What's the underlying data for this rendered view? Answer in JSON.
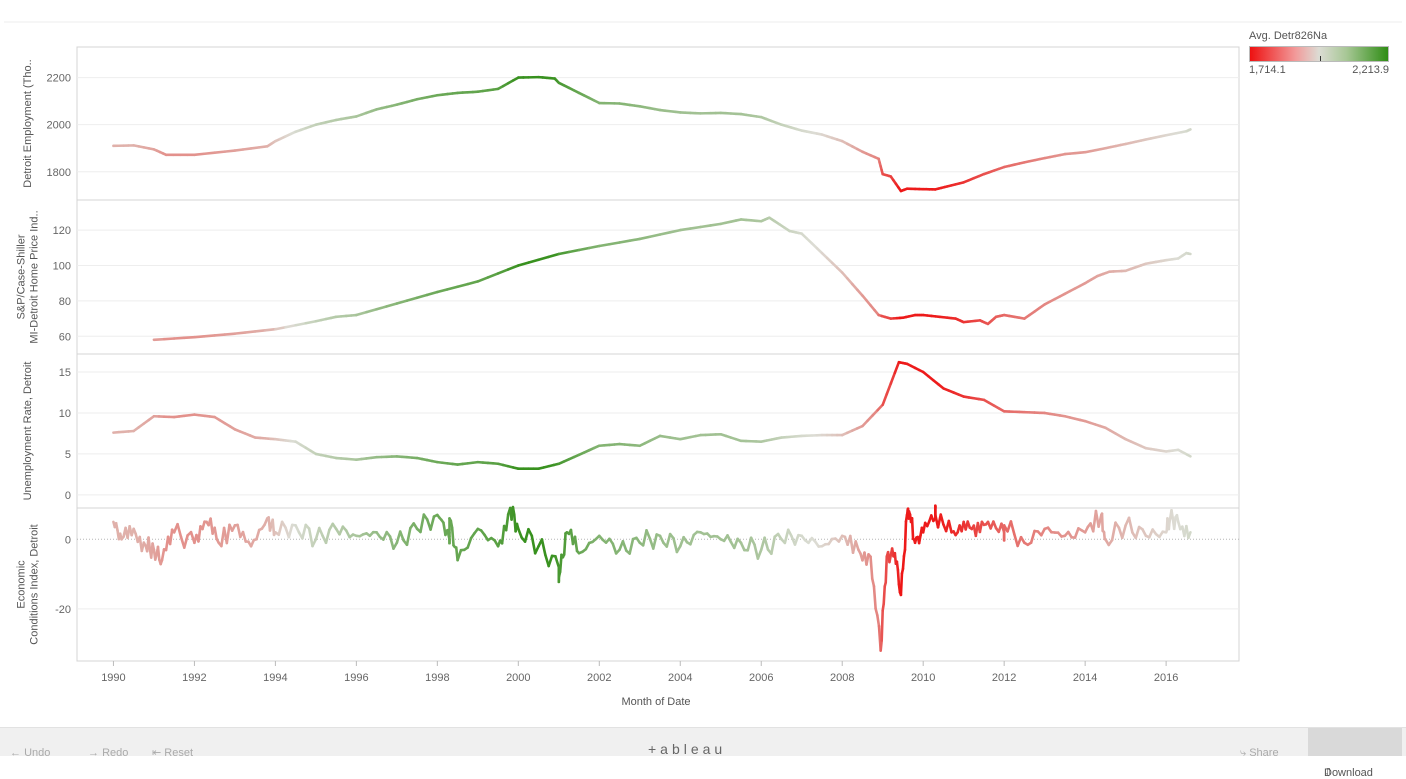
{
  "chart_data": {
    "type": "line",
    "xlabel": "Month of Date",
    "x_ticks": [
      "1990",
      "1992",
      "1994",
      "1996",
      "1998",
      "2000",
      "2002",
      "2004",
      "2006",
      "2008",
      "2010",
      "2012",
      "2014",
      "2016"
    ],
    "xlim": [
      1989.1,
      2017.8
    ],
    "color_legend": {
      "title": "Avg. Detr826Na",
      "min_label": "1,714.1",
      "max_label": "2,213.9",
      "min": 1714.1,
      "max": 2213.9,
      "low_color": "#ee1111",
      "mid_color": "#dcdcd4",
      "high_color": "#2f8d15"
    },
    "panels": [
      {
        "name": "employment",
        "ylabel": "Detroit Employment (Tho..",
        "ylim": [
          1680,
          2330
        ],
        "y_ticks": [
          1800,
          2000,
          2200
        ],
        "y_tick_labels": [
          "1800",
          "2000",
          "2200"
        ],
        "zero_line": false,
        "points": [
          [
            1990.0,
            1910
          ],
          [
            1990.5,
            1912
          ],
          [
            1991.0,
            1895
          ],
          [
            1991.3,
            1872
          ],
          [
            1992.0,
            1872
          ],
          [
            1993.0,
            1890
          ],
          [
            1993.8,
            1908
          ],
          [
            1994.0,
            1930
          ],
          [
            1994.5,
            1970
          ],
          [
            1995.0,
            2000
          ],
          [
            1995.5,
            2020
          ],
          [
            1996.0,
            2035
          ],
          [
            1996.5,
            2065
          ],
          [
            1997.0,
            2085
          ],
          [
            1997.5,
            2108
          ],
          [
            1998.0,
            2125
          ],
          [
            1998.5,
            2135
          ],
          [
            1999.0,
            2140
          ],
          [
            1999.5,
            2152
          ],
          [
            2000.0,
            2200
          ],
          [
            2000.5,
            2202
          ],
          [
            2000.9,
            2196
          ],
          [
            2001.0,
            2178
          ],
          [
            2001.5,
            2135
          ],
          [
            2002.0,
            2092
          ],
          [
            2002.5,
            2090
          ],
          [
            2003.0,
            2078
          ],
          [
            2003.5,
            2062
          ],
          [
            2004.0,
            2052
          ],
          [
            2004.5,
            2048
          ],
          [
            2005.0,
            2050
          ],
          [
            2005.5,
            2045
          ],
          [
            2006.0,
            2032
          ],
          [
            2006.5,
            2000
          ],
          [
            2007.0,
            1975
          ],
          [
            2007.5,
            1958
          ],
          [
            2008.0,
            1930
          ],
          [
            2008.5,
            1885
          ],
          [
            2008.9,
            1855
          ],
          [
            2009.0,
            1790
          ],
          [
            2009.2,
            1780
          ],
          [
            2009.45,
            1718
          ],
          [
            2009.6,
            1728
          ],
          [
            2010.0,
            1726
          ],
          [
            2010.3,
            1725
          ],
          [
            2010.6,
            1738
          ],
          [
            2011.0,
            1755
          ],
          [
            2011.5,
            1790
          ],
          [
            2012.0,
            1820
          ],
          [
            2012.5,
            1840
          ],
          [
            2013.0,
            1858
          ],
          [
            2013.5,
            1875
          ],
          [
            2014.0,
            1883
          ],
          [
            2014.5,
            1900
          ],
          [
            2015.0,
            1918
          ],
          [
            2015.5,
            1937
          ],
          [
            2016.0,
            1955
          ],
          [
            2016.5,
            1972
          ],
          [
            2016.6,
            1980
          ]
        ],
        "spikes": []
      },
      {
        "name": "home-price",
        "ylabel": "S&P/Case-Shiller MI-Detroit Home Price Ind..",
        "ylim": [
          50,
          137
        ],
        "y_ticks": [
          60,
          80,
          100,
          120
        ],
        "y_tick_labels": [
          "60",
          "80",
          "100",
          "120"
        ],
        "zero_line": false,
        "points": [
          [
            1991.0,
            58
          ],
          [
            1992.0,
            59.5
          ],
          [
            1993.0,
            61.5
          ],
          [
            1994.0,
            64
          ],
          [
            1995.0,
            68.5
          ],
          [
            1995.5,
            71
          ],
          [
            1996.0,
            72
          ],
          [
            1997.0,
            78.5
          ],
          [
            1998.0,
            85
          ],
          [
            1999.0,
            91
          ],
          [
            2000.0,
            100
          ],
          [
            2001.0,
            106.5
          ],
          [
            2002.0,
            111
          ],
          [
            2003.0,
            115
          ],
          [
            2004.0,
            120
          ],
          [
            2005.0,
            123.5
          ],
          [
            2005.5,
            126
          ],
          [
            2006.0,
            125
          ],
          [
            2006.2,
            127
          ],
          [
            2006.7,
            119.5
          ],
          [
            2007.0,
            118
          ],
          [
            2007.5,
            107
          ],
          [
            2008.0,
            96
          ],
          [
            2008.5,
            83
          ],
          [
            2008.9,
            72
          ],
          [
            2009.2,
            70
          ],
          [
            2009.5,
            70.5
          ],
          [
            2009.8,
            72
          ],
          [
            2010.0,
            72
          ],
          [
            2010.4,
            71
          ],
          [
            2010.8,
            70
          ],
          [
            2011.0,
            68
          ],
          [
            2011.4,
            69
          ],
          [
            2011.6,
            67
          ],
          [
            2011.8,
            71
          ],
          [
            2012.0,
            72
          ],
          [
            2012.5,
            70
          ],
          [
            2013.0,
            78
          ],
          [
            2013.5,
            84
          ],
          [
            2014.0,
            90
          ],
          [
            2014.3,
            94
          ],
          [
            2014.6,
            96.5
          ],
          [
            2015.0,
            97
          ],
          [
            2015.5,
            101
          ],
          [
            2016.0,
            103
          ],
          [
            2016.3,
            104
          ],
          [
            2016.5,
            107
          ],
          [
            2016.6,
            106.5
          ]
        ],
        "spikes": []
      },
      {
        "name": "unemployment",
        "ylabel": "Unemployment Rate, Detroit",
        "ylim": [
          -1.6,
          17.2
        ],
        "y_ticks": [
          0,
          5,
          10,
          15
        ],
        "y_tick_labels": [
          "0",
          "5",
          "10",
          "15"
        ],
        "zero_line": false,
        "points": [
          [
            1990.0,
            7.6
          ],
          [
            1990.5,
            7.8
          ],
          [
            1991.0,
            9.6
          ],
          [
            1991.5,
            9.5
          ],
          [
            1992.0,
            9.8
          ],
          [
            1992.5,
            9.5
          ],
          [
            1993.0,
            8.0
          ],
          [
            1993.5,
            7.0
          ],
          [
            1994.0,
            6.8
          ],
          [
            1994.5,
            6.5
          ],
          [
            1995.0,
            5.0
          ],
          [
            1995.5,
            4.5
          ],
          [
            1996.0,
            4.3
          ],
          [
            1996.5,
            4.6
          ],
          [
            1997.0,
            4.7
          ],
          [
            1997.5,
            4.5
          ],
          [
            1998.0,
            4.0
          ],
          [
            1998.5,
            3.7
          ],
          [
            1999.0,
            4.0
          ],
          [
            1999.5,
            3.8
          ],
          [
            2000.0,
            3.2
          ],
          [
            2000.5,
            3.2
          ],
          [
            2001.0,
            3.8
          ],
          [
            2001.5,
            4.9
          ],
          [
            2002.0,
            6.0
          ],
          [
            2002.5,
            6.2
          ],
          [
            2003.0,
            6.0
          ],
          [
            2003.5,
            7.2
          ],
          [
            2004.0,
            6.8
          ],
          [
            2004.5,
            7.3
          ],
          [
            2005.0,
            7.4
          ],
          [
            2005.5,
            6.6
          ],
          [
            2006.0,
            6.5
          ],
          [
            2006.5,
            7.0
          ],
          [
            2007.0,
            7.2
          ],
          [
            2007.5,
            7.3
          ],
          [
            2008.0,
            7.3
          ],
          [
            2008.5,
            8.4
          ],
          [
            2009.0,
            11.0
          ],
          [
            2009.4,
            16.2
          ],
          [
            2009.6,
            16.0
          ],
          [
            2010.0,
            15.0
          ],
          [
            2010.5,
            13.0
          ],
          [
            2011.0,
            12.0
          ],
          [
            2011.5,
            11.6
          ],
          [
            2012.0,
            10.2
          ],
          [
            2012.5,
            10.1
          ],
          [
            2013.0,
            10.0
          ],
          [
            2013.5,
            9.6
          ],
          [
            2014.0,
            9.0
          ],
          [
            2014.5,
            8.2
          ],
          [
            2015.0,
            6.8
          ],
          [
            2015.5,
            5.7
          ],
          [
            2016.0,
            5.3
          ],
          [
            2016.3,
            5.5
          ],
          [
            2016.6,
            4.7
          ]
        ],
        "spikes": []
      },
      {
        "name": "economic-conditions",
        "ylabel": "Economic Conditions Index, Detroit",
        "ylim": [
          -35,
          9
        ],
        "y_ticks": [
          -20,
          0
        ],
        "y_tick_labels": [
          "-20",
          "0"
        ],
        "zero_line": true,
        "points": [
          [
            1990.0,
            5
          ],
          [
            1990.2,
            0
          ],
          [
            1990.5,
            3
          ],
          [
            1990.8,
            -2
          ],
          [
            1991.0,
            -3
          ],
          [
            1991.2,
            -6
          ],
          [
            1991.5,
            2
          ],
          [
            1992.0,
            -1
          ],
          [
            1992.3,
            5
          ],
          [
            1992.6,
            -1
          ],
          [
            1993.0,
            4
          ],
          [
            1993.4,
            -2
          ],
          [
            1993.8,
            6
          ],
          [
            1994.0,
            2
          ],
          [
            1994.5,
            4
          ],
          [
            1995.0,
            0
          ],
          [
            1995.5,
            3
          ],
          [
            1996.0,
            1
          ],
          [
            1996.5,
            2
          ],
          [
            1997.0,
            -1
          ],
          [
            1997.5,
            3
          ],
          [
            1998.0,
            7
          ],
          [
            1998.3,
            0
          ],
          [
            1998.5,
            -6
          ],
          [
            1999.0,
            3
          ],
          [
            1999.5,
            -2
          ],
          [
            2000.0,
            3
          ],
          [
            2000.5,
            -2
          ],
          [
            2001.0,
            -8
          ],
          [
            2001.2,
            2
          ],
          [
            2001.5,
            -4
          ],
          [
            2002.0,
            1
          ],
          [
            2002.5,
            -3
          ],
          [
            2003.0,
            -1
          ],
          [
            2003.5,
            1
          ],
          [
            2004.0,
            -2
          ],
          [
            2004.5,
            2
          ],
          [
            2005.0,
            0
          ],
          [
            2005.5,
            -1
          ],
          [
            2006.0,
            -3
          ],
          [
            2006.5,
            0
          ],
          [
            2007.0,
            1
          ],
          [
            2007.5,
            -2
          ],
          [
            2008.0,
            1
          ],
          [
            2008.4,
            -3
          ],
          [
            2008.7,
            -5
          ],
          [
            2008.95,
            -32
          ],
          [
            2009.1,
            -5
          ],
          [
            2009.3,
            -4
          ],
          [
            2009.45,
            -16
          ],
          [
            2009.6,
            7
          ],
          [
            2009.8,
            -1
          ],
          [
            2010.0,
            2
          ],
          [
            2010.3,
            6
          ],
          [
            2010.7,
            2
          ],
          [
            2011.0,
            5
          ],
          [
            2011.3,
            1
          ],
          [
            2011.6,
            5
          ],
          [
            2012.0,
            2
          ],
          [
            2012.5,
            -1
          ],
          [
            2013.0,
            3
          ],
          [
            2013.5,
            1
          ],
          [
            2014.0,
            2
          ],
          [
            2014.5,
            0
          ],
          [
            2015.0,
            4
          ],
          [
            2015.5,
            1
          ],
          [
            2016.0,
            2
          ],
          [
            2016.3,
            5
          ],
          [
            2016.6,
            2
          ]
        ],
        "spikes": [
          [
            1998.3,
            6
          ],
          [
            1999.8,
            9
          ],
          [
            2001.0,
            -11
          ],
          [
            2009.65,
            8
          ],
          [
            2010.3,
            7
          ],
          [
            2012.0,
            4
          ],
          [
            2014.4,
            7
          ],
          [
            2016.1,
            6
          ]
        ]
      }
    ]
  },
  "footer": {
    "undo": "Undo",
    "redo": "Redo",
    "reset": "Reset",
    "brand": "+ableau",
    "share": "Share",
    "download": "Download"
  }
}
